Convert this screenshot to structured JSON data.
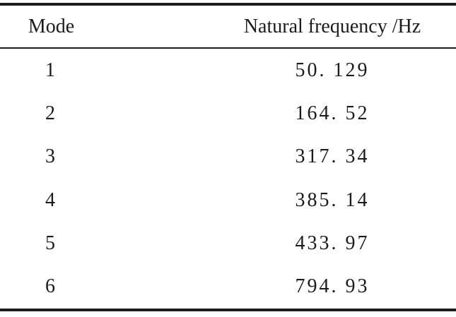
{
  "table": {
    "header": {
      "mode_label": "Mode",
      "frequency_label": "Natural frequency /Hz"
    },
    "rows": [
      {
        "mode": "1",
        "frequency_display": "50. 129"
      },
      {
        "mode": "2",
        "frequency_display": "164. 52"
      },
      {
        "mode": "3",
        "frequency_display": "317. 34"
      },
      {
        "mode": "4",
        "frequency_display": "385. 14"
      },
      {
        "mode": "5",
        "frequency_display": "433. 97"
      },
      {
        "mode": "6",
        "frequency_display": "794. 93"
      }
    ]
  },
  "colors": {
    "background": "#ffffff",
    "text": "#1b1b1b",
    "rule": "#1c1c1c"
  },
  "chart_data": {
    "type": "table",
    "columns": [
      "Mode",
      "Natural frequency /Hz"
    ],
    "rows": [
      [
        1,
        50.129
      ],
      [
        2,
        164.52
      ],
      [
        3,
        317.34
      ],
      [
        4,
        385.14
      ],
      [
        5,
        433.97
      ],
      [
        6,
        794.93
      ]
    ]
  }
}
